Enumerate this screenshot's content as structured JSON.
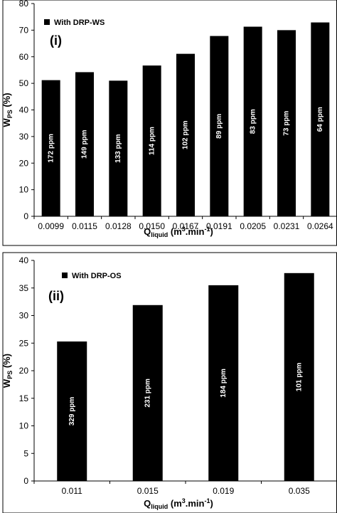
{
  "colors": {
    "bar": "#000000",
    "bar_label": "#ffffff",
    "background": "#ffffff"
  },
  "chart_data": [
    {
      "type": "bar",
      "panel_label": "(i)",
      "legend": "With DRP-WS",
      "ylabel": {
        "main": "W",
        "sub": "PS",
        "tail": " (%)"
      },
      "xlabel": {
        "main": "Q",
        "sub": "liquid",
        "mid": " (m",
        "sup": "3",
        "tail": ".min",
        "sup2": "-1",
        "end": ")"
      },
      "ylim": [
        0,
        80
      ],
      "yticks": [
        0,
        10,
        20,
        30,
        40,
        50,
        60,
        70,
        80
      ],
      "categories": [
        "0.0099",
        "0.0115",
        "0.0128",
        "0.0150",
        "0.0167",
        "0.0191",
        "0.0205",
        "0.0231",
        "0.0264"
      ],
      "series": [
        {
          "values": [
            51.2,
            54.2,
            51.0,
            56.7,
            61.1,
            67.8,
            71.3,
            70.0,
            72.9
          ]
        }
      ],
      "bar_labels": [
        "172 ppm",
        "149 ppm",
        "133 ppm",
        "114 ppm",
        "102 ppm",
        "89 ppm",
        "83 ppm",
        "73 ppm",
        "64 ppm"
      ],
      "legend_position": "top-left"
    },
    {
      "type": "bar",
      "panel_label": "(ii)",
      "legend": "With DRP-OS",
      "ylabel": {
        "main": "W",
        "sub": "PS",
        "tail": " (%)"
      },
      "xlabel": {
        "main": "Q",
        "sub": "liquid",
        "mid": "  (m",
        "sup": "3",
        "tail": ".min",
        "sup2": "-1",
        "end": ")"
      },
      "ylim": [
        0,
        40
      ],
      "yticks": [
        0,
        5,
        10,
        15,
        20,
        25,
        30,
        35,
        40
      ],
      "categories": [
        "0.011",
        "0.015",
        "0.019",
        "0.035"
      ],
      "series": [
        {
          "values": [
            25.3,
            31.9,
            35.5,
            37.7
          ]
        }
      ],
      "bar_labels": [
        "329 ppm",
        "231 ppm",
        "184 ppm",
        "101 ppm"
      ],
      "legend_position": "top-left"
    }
  ]
}
